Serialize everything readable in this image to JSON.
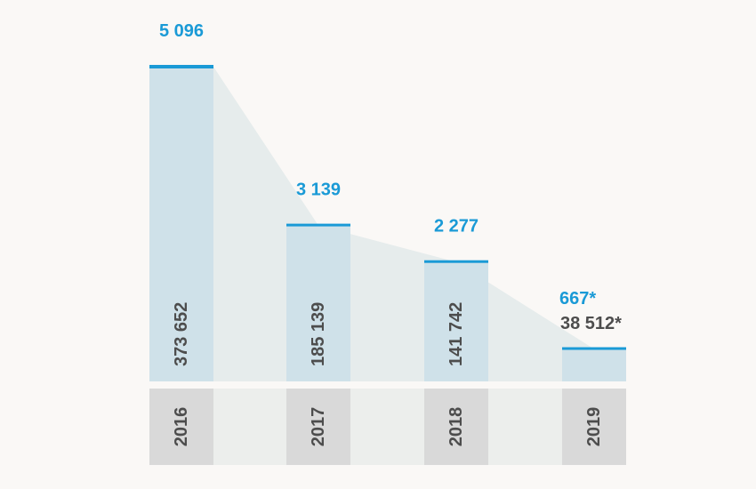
{
  "chart_data": {
    "type": "bar",
    "categories": [
      "2016",
      "2017",
      "2018",
      "2019"
    ],
    "series": [
      {
        "values": [
          373652,
          185139,
          141742,
          38512
        ]
      },
      {
        "values": [
          5096,
          3139,
          2277,
          667
        ]
      }
    ],
    "bar_value_labels": [
      "373 652",
      "185 139",
      "141 742",
      "38 512*"
    ],
    "top_value_labels": [
      "5 096",
      "3 139",
      "2 277",
      "667*"
    ],
    "colors": {
      "bar_fill": "#cfe1e9",
      "bar_cap": "#1a9ad6",
      "top_label": "#1a9ad6",
      "bar_label": "#4d4d4d",
      "year_box": "#d9d9d9",
      "year_band": "#eceeec",
      "area": "#e6ecec",
      "background": "#faf8f6"
    }
  }
}
